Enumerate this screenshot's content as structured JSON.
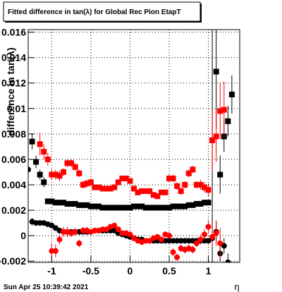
{
  "chart_data": {
    "type": "scatter",
    "title": "Fitted difference in tan(λ) for Global Rec Pion EtapT",
    "y_label": "difference in tan(λ)",
    "x_label": "η",
    "timestamp": "Sun Apr 25 10:39:42 2021",
    "xlim": [
      -1.3,
      1.4
    ],
    "ylim": [
      -0.0021,
      0.0162
    ],
    "xticks": [
      -1,
      -0.5,
      0,
      0.5,
      1
    ],
    "yticks": [
      -0.002,
      0,
      0.002,
      0.004,
      0.006,
      0.008,
      0.01,
      0.012,
      0.014,
      0.016
    ],
    "grid": true,
    "series": [
      {
        "color": "#000000",
        "marker": "square",
        "x": [
          -1.25,
          -1.2,
          -1.15,
          -1.1,
          -1.05,
          -1.0,
          -0.95,
          -0.9,
          -0.85,
          -0.8,
          -0.75,
          -0.7,
          -0.65,
          -0.6,
          -0.55,
          -0.5,
          -0.45,
          -0.4,
          -0.35,
          -0.3,
          -0.25,
          -0.2,
          -0.15,
          -0.1,
          -0.05,
          0,
          0.05,
          0.1,
          0.15,
          0.2,
          0.25,
          0.3,
          0.35,
          0.4,
          0.45,
          0.5,
          0.55,
          0.6,
          0.65,
          0.7,
          0.75,
          0.8,
          0.85,
          0.9,
          0.95,
          1.0,
          1.05,
          1.1,
          1.15,
          1.2,
          1.25,
          1.3
        ],
        "values": [
          0.0074,
          0.0058,
          0.0048,
          0.0042,
          0.0027,
          0.0027,
          0.0026,
          0.0026,
          0.0026,
          0.0025,
          0.0025,
          0.0025,
          0.0024,
          0.0024,
          0.0024,
          0.0023,
          0.0023,
          0.0023,
          0.0022,
          0.0022,
          0.0022,
          0.0022,
          0.0022,
          0.0022,
          0.0022,
          0.0022,
          0.0023,
          0.0023,
          0.0023,
          0.0022,
          0.0022,
          0.0022,
          0.0022,
          0.0022,
          0.0022,
          0.0022,
          0.0023,
          0.0023,
          0.0023,
          0.0023,
          0.0024,
          0.0024,
          0.0025,
          0.0025,
          0.0026,
          0.0026,
          0.0075,
          0.0129,
          0.0048,
          0.0078,
          0.009,
          0.0111
        ],
        "errors": [
          0.0006,
          0.0005,
          0.0004,
          0.0004,
          0.0001,
          0.0001,
          0.0001,
          0.0001,
          0.0001,
          0.0001,
          0.0001,
          0.0001,
          0.0001,
          0.0001,
          0.0001,
          0.0001,
          0.0001,
          0.0001,
          0.0001,
          0.0001,
          0.0001,
          0.0001,
          0.0001,
          0.0001,
          0.0001,
          0.0001,
          0.0001,
          0.0001,
          0.0001,
          0.0001,
          0.0001,
          0.0001,
          0.0001,
          0.0001,
          0.0001,
          0.0001,
          0.0001,
          0.0001,
          0.0001,
          0.0001,
          0.0001,
          0.0001,
          0.0001,
          0.0001,
          0.0001,
          0.0002,
          0.012,
          0.0045,
          0.0015,
          0.0012,
          0.0012,
          0.0015
        ]
      },
      {
        "color": "#000000",
        "marker": "circle",
        "x": [
          -1.3,
          -1.25,
          -1.2,
          -1.15,
          -1.1,
          -1.05,
          -1.0,
          -0.95,
          -0.9,
          -0.85,
          -0.8,
          -0.75,
          -0.7,
          -0.65,
          -0.6,
          -0.55,
          -0.5,
          -0.45,
          -0.4,
          -0.35,
          -0.3,
          -0.25,
          -0.2,
          -0.15,
          -0.1,
          -0.05,
          0,
          0.05,
          0.1,
          0.15,
          0.2,
          0.25,
          0.3,
          0.35,
          0.4,
          0.45,
          0.5,
          0.55,
          0.6,
          0.65,
          0.7,
          0.75,
          0.8,
          0.85,
          0.9,
          0.95,
          1.0,
          1.05,
          1.1,
          1.15,
          1.2,
          1.25
        ],
        "values": [
          0.0052,
          0.0011,
          0.001,
          0.001,
          0.001,
          0.0009,
          0.0008,
          0.0006,
          0.0004,
          0.0003,
          0.0003,
          0.0003,
          0.0003,
          0.0003,
          0.0003,
          0.0003,
          0.0003,
          0.0004,
          0.0004,
          0.0004,
          0.0004,
          0.0004,
          0.0004,
          0.0002,
          0.0001,
          0.0,
          -0.0001,
          -0.0002,
          -0.0003,
          -0.0003,
          -0.0004,
          -0.0004,
          -0.0004,
          -0.0004,
          -0.0004,
          -0.0004,
          -0.0004,
          -0.0004,
          -0.0004,
          -0.0004,
          -0.0004,
          -0.0004,
          -0.0004,
          -0.0004,
          -0.0004,
          -0.0004,
          -0.0004,
          -0.0002,
          0.0003,
          -0.0014,
          -0.0008,
          -0.0021
        ],
        "errors": [
          0.0004,
          0.0003,
          0.0002,
          0.0002,
          0.0002,
          0.0001,
          0.0001,
          0.0001,
          0.0001,
          0.0001,
          0.0001,
          0.0001,
          0.0001,
          0.0001,
          0.0001,
          0.0001,
          0.0001,
          0.0001,
          0.0001,
          0.0001,
          0.0001,
          0.0001,
          0.0001,
          0.0001,
          0.0001,
          0.0001,
          0.0001,
          0.0001,
          0.0001,
          0.0001,
          0.0001,
          0.0001,
          0.0001,
          0.0001,
          0.0001,
          0.0001,
          0.0001,
          0.0001,
          0.0001,
          0.0001,
          0.0001,
          0.0001,
          0.0001,
          0.0001,
          0.0001,
          0.0001,
          0.0001,
          0.0003,
          0.0008,
          0.0006,
          0.0006,
          0.0007
        ]
      },
      {
        "color": "#ff0000",
        "marker": "square",
        "x": [
          -1.15,
          -1.1,
          -1.05,
          -1.0,
          -0.95,
          -0.9,
          -0.85,
          -0.8,
          -0.75,
          -0.7,
          -0.65,
          -0.6,
          -0.55,
          -0.5,
          -0.45,
          -0.4,
          -0.35,
          -0.3,
          -0.25,
          -0.2,
          -0.15,
          -0.1,
          -0.05,
          0,
          0.05,
          0.1,
          0.15,
          0.2,
          0.25,
          0.3,
          0.35,
          0.4,
          0.45,
          0.5,
          0.55,
          0.6,
          0.65,
          0.7,
          0.75,
          0.8,
          0.85,
          0.9,
          0.95,
          1.0,
          1.05,
          1.1,
          1.15,
          1.2
        ],
        "values": [
          0.0072,
          0.0066,
          0.006,
          0.0048,
          0.0048,
          0.0047,
          0.005,
          0.0057,
          0.0057,
          0.0054,
          0.0049,
          0.004,
          0.0041,
          0.0042,
          0.0038,
          0.0038,
          0.0037,
          0.0037,
          0.0037,
          0.0038,
          0.0042,
          0.0045,
          0.0045,
          0.0043,
          0.0037,
          0.0034,
          0.0035,
          0.0035,
          0.0035,
          0.0032,
          0.0031,
          0.0034,
          0.0034,
          0.0045,
          0.0045,
          0.0039,
          0.0035,
          0.004,
          0.0049,
          0.0052,
          0.004,
          0.004,
          0.0038,
          0.0036,
          0.0075,
          0.0078,
          0.0098,
          0.0099
        ],
        "errors": [
          0.0009,
          0.0006,
          0.0005,
          0.0004,
          0.0004,
          0.0004,
          0.0003,
          0.0003,
          0.0003,
          0.0003,
          0.0003,
          0.0003,
          0.0003,
          0.0003,
          0.0002,
          0.0002,
          0.0002,
          0.0002,
          0.0002,
          0.0002,
          0.0002,
          0.0002,
          0.0002,
          0.0002,
          0.0002,
          0.0002,
          0.0002,
          0.0002,
          0.0002,
          0.0002,
          0.0002,
          0.0002,
          0.0002,
          0.0003,
          0.0003,
          0.0003,
          0.0003,
          0.0003,
          0.0003,
          0.0003,
          0.0003,
          0.0004,
          0.0004,
          0.0005,
          0.0025,
          0.002,
          0.0022,
          0.0022
        ]
      },
      {
        "color": "#ff0000",
        "marker": "circle",
        "x": [
          -1.0,
          -0.95,
          -0.9,
          -0.85,
          -0.8,
          -0.75,
          -0.7,
          -0.65,
          -0.6,
          -0.55,
          -0.5,
          -0.45,
          -0.4,
          -0.35,
          -0.3,
          -0.25,
          -0.2,
          -0.15,
          -0.1,
          -0.05,
          0,
          0.05,
          0.1,
          0.15,
          0.2,
          0.25,
          0.3,
          0.35,
          0.4,
          0.45,
          0.5,
          0.55,
          0.6,
          0.65,
          0.7,
          0.75,
          0.8,
          0.85,
          0.9,
          0.95,
          1.0,
          1.05,
          1.1,
          1.15
        ],
        "values": [
          -0.0012,
          -0.0012,
          -0.0003,
          0.0003,
          0.0003,
          0.0002,
          0.0003,
          -0.0006,
          0.0004,
          0.0004,
          0.0003,
          0.0004,
          0.0004,
          0.0005,
          0.0005,
          0.0007,
          0.0008,
          0.0005,
          0.0002,
          0.0002,
          0.0001,
          -0.0002,
          -0.0004,
          -0.0005,
          -0.0004,
          -0.0004,
          -0.0002,
          -0.0001,
          -0.0003,
          0.0001,
          0.0,
          -0.0013,
          -0.0017,
          -0.001,
          -0.0011,
          -0.001,
          -0.0011,
          -0.0006,
          -0.0003,
          0.0001,
          0.0007,
          -0.0001,
          0.0002,
          -0.0006
        ],
        "errors": [
          0.0006,
          0.0005,
          0.0004,
          0.0004,
          0.0004,
          0.0003,
          0.0003,
          0.0003,
          0.0003,
          0.0003,
          0.0002,
          0.0002,
          0.0002,
          0.0002,
          0.0002,
          0.0002,
          0.0002,
          0.0002,
          0.0002,
          0.0002,
          0.0002,
          0.0002,
          0.0002,
          0.0002,
          0.0002,
          0.0002,
          0.0002,
          0.0002,
          0.0002,
          0.0002,
          0.0003,
          0.0003,
          0.0003,
          0.0003,
          0.0003,
          0.0003,
          0.0003,
          0.0003,
          0.0004,
          0.0004,
          0.0005,
          0.0008,
          0.001,
          0.0012
        ]
      }
    ]
  }
}
